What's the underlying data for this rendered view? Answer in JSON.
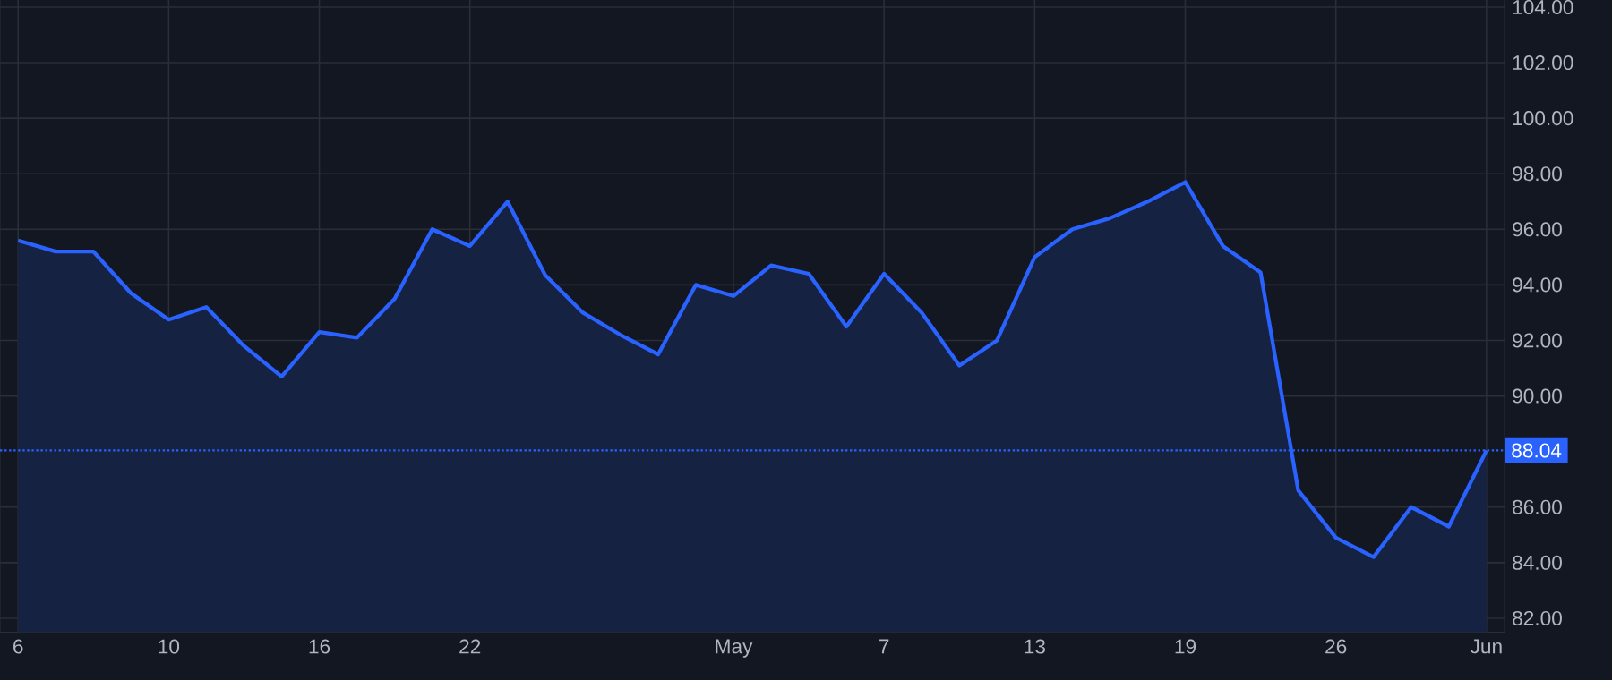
{
  "chart_data": {
    "type": "area",
    "categories": [
      "6",
      null,
      null,
      null,
      "10",
      null,
      null,
      null,
      "16",
      null,
      null,
      null,
      "22",
      null,
      null,
      null,
      null,
      null,
      null,
      "May",
      null,
      null,
      null,
      "7",
      null,
      null,
      null,
      "13",
      null,
      null,
      null,
      "19",
      null,
      null,
      null,
      "26",
      null,
      null,
      null,
      "Jun"
    ],
    "series": [
      {
        "color": "#2962ff",
        "values": [
          95.6,
          95.2,
          95.2,
          93.7,
          92.75,
          93.2,
          91.8,
          90.7,
          92.3,
          92.1,
          93.5,
          96.0,
          95.4,
          97.0,
          94.35,
          93.0,
          92.2,
          91.5,
          94.0,
          93.6,
          94.7,
          94.4,
          92.5,
          94.4,
          93.0,
          91.1,
          92.0,
          95.0,
          96.0,
          96.4,
          97.0,
          97.7,
          95.4,
          94.45,
          86.6,
          84.9,
          84.2,
          86.0,
          85.3,
          88.04
        ]
      }
    ],
    "ylim": [
      81.5,
      104.5
    ],
    "yticks": [
      {
        "value": 82,
        "label": "82.00"
      },
      {
        "value": 84,
        "label": "84.00"
      },
      {
        "value": 86,
        "label": "86.00"
      },
      {
        "value": 90,
        "label": "90.00"
      },
      {
        "value": 92,
        "label": "92.00"
      },
      {
        "value": 94,
        "label": "94.00"
      },
      {
        "value": 96,
        "label": "96.00"
      },
      {
        "value": 98,
        "label": "98.00"
      },
      {
        "value": 100,
        "label": "100.00"
      },
      {
        "value": 102,
        "label": "102.00"
      },
      {
        "value": 104,
        "label": "104.00"
      }
    ],
    "grid": true,
    "ref_lines": [
      {
        "axis": "y",
        "value": 88.04,
        "label": "88.04",
        "color": "#2962ff",
        "line_style": "dotted"
      }
    ]
  }
}
